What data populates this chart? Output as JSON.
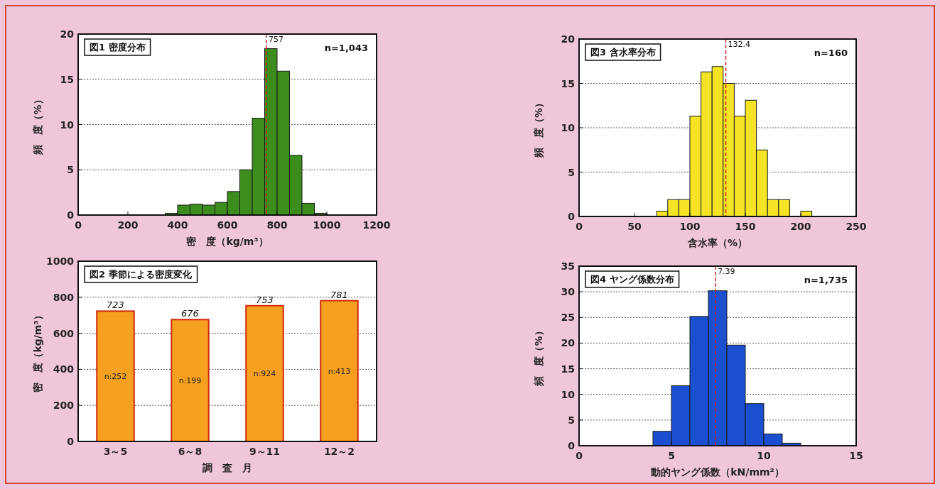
{
  "chart_data": [
    {
      "type": "histogram",
      "title": "図1 密度分布",
      "xlabel": "密　度（kg/m³）",
      "ylabel": "頻　度（%）",
      "bins": [
        350,
        400,
        450,
        500,
        550,
        600,
        650,
        700,
        750,
        800,
        850,
        900,
        950,
        1000
      ],
      "values": [
        0.2,
        1.1,
        1.2,
        1.1,
        1.4,
        2.6,
        5.0,
        10.7,
        18.4,
        15.9,
        6.6,
        1.3,
        0.2
      ],
      "color": "#3c8c1e",
      "xlim": [
        0,
        1200
      ],
      "xticks": [
        0,
        200,
        400,
        600,
        800,
        1000,
        1200
      ],
      "ylim": [
        0,
        20
      ],
      "yticks": [
        0,
        5,
        10,
        15,
        20
      ],
      "grid": "y",
      "ref_lines": [
        {
          "axis": "x",
          "value": 757,
          "label": "757",
          "color": "#d02020",
          "line_style": "dashed"
        }
      ],
      "annotations": [
        "n=1,043"
      ]
    },
    {
      "type": "histogram",
      "title": "図3 含水率分布",
      "xlabel": "含水率（%）",
      "ylabel": "頻　度（%）",
      "bins": [
        70,
        80,
        90,
        100,
        110,
        120,
        130,
        140,
        150,
        160,
        170,
        180,
        190,
        200,
        210
      ],
      "values": [
        0.6,
        1.9,
        1.9,
        11.3,
        16.3,
        16.9,
        15.0,
        11.3,
        13.1,
        7.5,
        1.9,
        1.9,
        0,
        0.6
      ],
      "color": "#f5e426",
      "xlim": [
        0,
        250
      ],
      "xticks": [
        0,
        50,
        100,
        150,
        200,
        250
      ],
      "ylim": [
        0,
        20
      ],
      "yticks": [
        0,
        5,
        10,
        15,
        20
      ],
      "grid": "y",
      "ref_lines": [
        {
          "axis": "x",
          "value": 132.4,
          "label": "132.4",
          "color": "#d02020",
          "line_style": "dashed"
        }
      ],
      "annotations": [
        "n=160"
      ]
    },
    {
      "type": "bar",
      "title": "図2 季節による密度変化",
      "xlabel": "調　査　月",
      "ylabel": "密　度（kg/m³）",
      "categories": [
        "3～5",
        "6～8",
        "9～11",
        "12～2"
      ],
      "values": [
        723,
        676,
        753,
        781
      ],
      "color": "#f5a01e",
      "ylim": [
        0,
        1000
      ],
      "yticks": [
        0,
        200,
        400,
        600,
        800,
        1000
      ],
      "grid": "y",
      "data_labels": true,
      "annotations": [
        "n:252",
        "n:199",
        "n:924",
        "n:413"
      ]
    },
    {
      "type": "histogram",
      "title": "図4 ヤング係数分布",
      "xlabel": "動的ヤング係数（kN/mm²）",
      "ylabel": "頻　度（%）",
      "bins": [
        4,
        5,
        6,
        7,
        8,
        9,
        10,
        11,
        12
      ],
      "values": [
        2.8,
        11.7,
        25.2,
        30.2,
        19.6,
        8.2,
        2.3,
        0.5
      ],
      "color": "#1a4fd0",
      "xlim": [
        0,
        15
      ],
      "xticks": [
        0,
        5,
        10,
        15
      ],
      "ylim": [
        0,
        35
      ],
      "yticks": [
        0,
        5,
        10,
        15,
        20,
        25,
        30,
        35
      ],
      "grid": "y",
      "ref_lines": [
        {
          "axis": "x",
          "value": 7.39,
          "label": "7.39",
          "color": "#d02020",
          "line_style": "dashed"
        }
      ],
      "annotations": [
        "n=1,735"
      ]
    }
  ]
}
